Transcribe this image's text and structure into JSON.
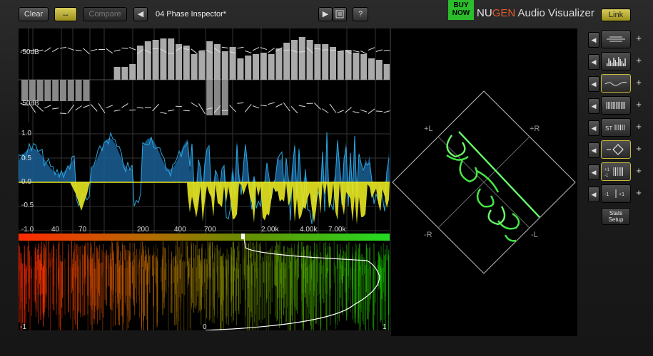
{
  "toolbar": {
    "clear_label": "Clear",
    "link_arrows_label": "↔",
    "compare_label": "Compare",
    "prev_label": "◀",
    "preset_name": "04 Phase Inspector*",
    "play_label": "▶",
    "help_label": "?"
  },
  "brand": {
    "buy_now": "BUY NOW",
    "nu": "NU",
    "gen": "GEN",
    "title": " Audio Visualizer",
    "link_label": "Link"
  },
  "spectrum": {
    "db_top": "-50dB",
    "db_bottom": "-50dB",
    "freq_labels": [
      "40",
      "70",
      "200",
      "400",
      "700",
      "2.00k",
      "4.00k",
      "7.00k"
    ]
  },
  "phase": {
    "y_labels": [
      "1.0",
      "0.5",
      "0.0",
      "-0.5",
      "-1.0"
    ],
    "freq_labels": [
      "40",
      "70",
      "200",
      "400",
      "700",
      "2.00k",
      "4.00k",
      "7.00k"
    ]
  },
  "correlation": {
    "left": "-1",
    "center": "0",
    "right": "1"
  },
  "scope": {
    "plus_l": "+L",
    "plus_r": "+R",
    "minus_r": "-R",
    "minus_l": "-L"
  },
  "sidebar": {
    "arrow": "◀",
    "plus": "+",
    "stats_line1": "Stats",
    "stats_line2": "Setup",
    "row3_label": "ST",
    "row6_label": "+1 | +1",
    "row7_label": "-1 | +1"
  },
  "colors": {
    "accent_gold": "#d8cc5a",
    "phase_blue": "#1f77b4",
    "phase_yellow": "#f0f020",
    "scope_green": "#4cff4c"
  }
}
